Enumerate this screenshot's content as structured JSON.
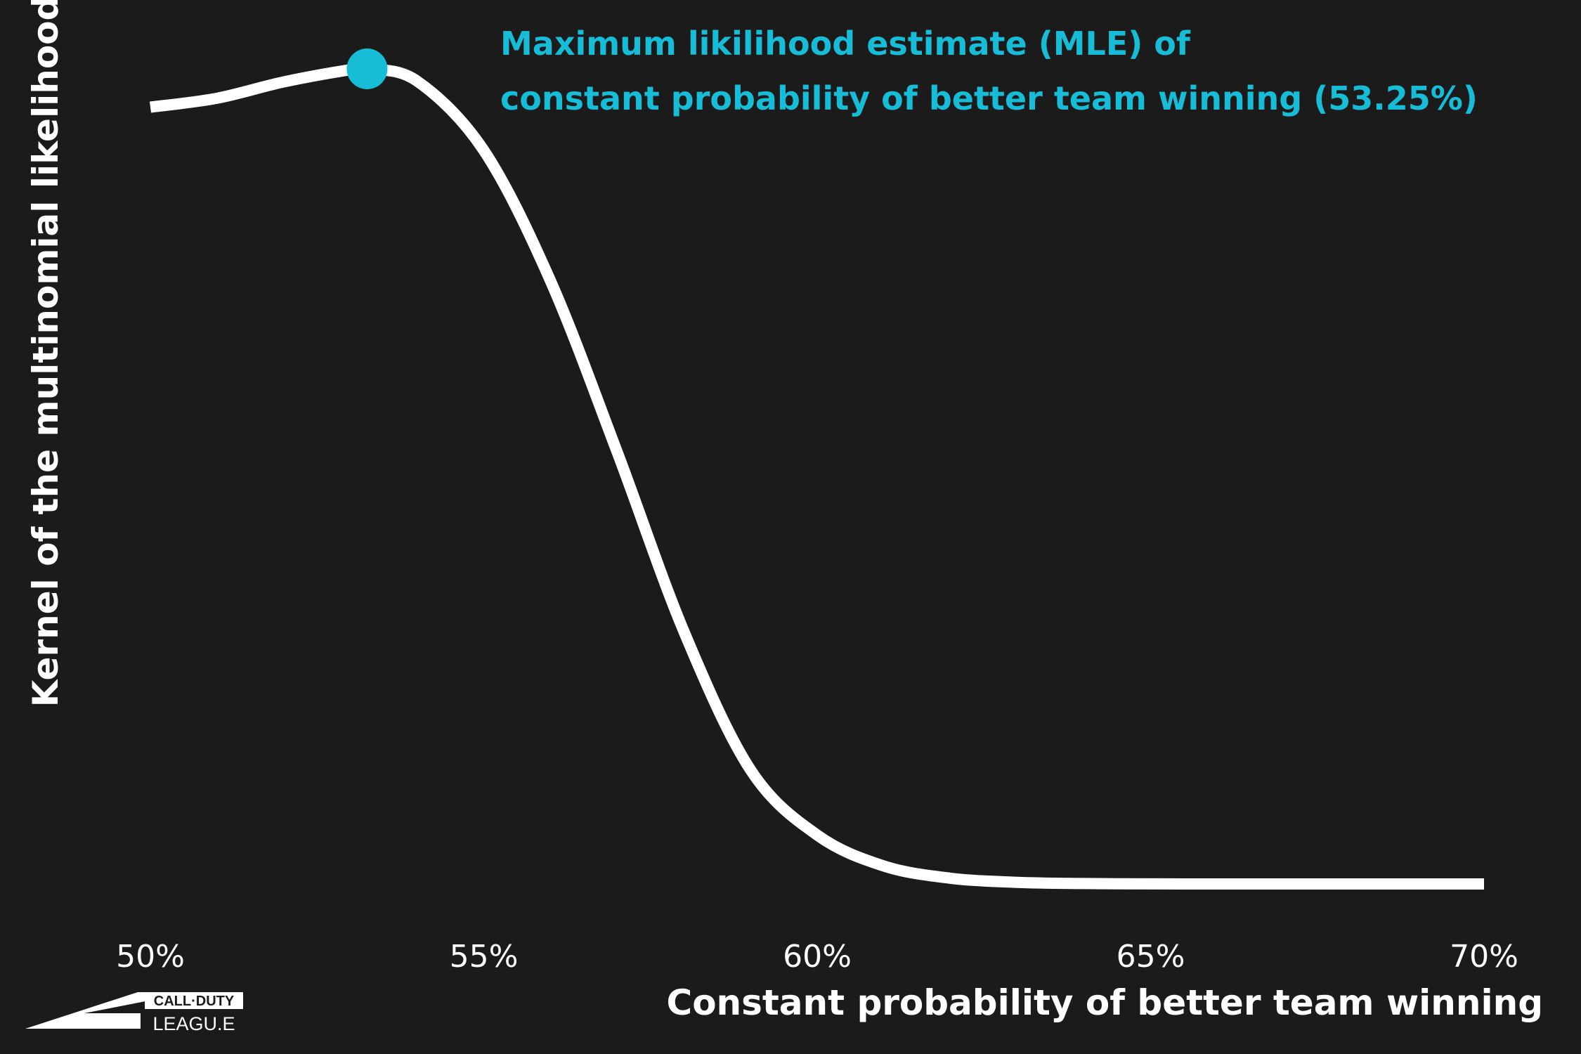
{
  "chart_data": {
    "type": "line",
    "xlabel": "Constant probability of better team winning",
    "ylabel": "Kernel of the multinomial likelihood",
    "x_ticks": [
      "50%",
      "55%",
      "60%",
      "65%",
      "70%"
    ],
    "xlim": [
      50,
      70
    ],
    "ylim": [
      0,
      1
    ],
    "grid": false,
    "series": [
      {
        "x": [
          50,
          51,
          52,
          53,
          53.25,
          54,
          55,
          56,
          57,
          58,
          59,
          60,
          61,
          62,
          63,
          64,
          65,
          66,
          67,
          68,
          69,
          70
        ],
        "y": [
          0.953,
          0.964,
          0.984,
          0.999,
          1.0,
          0.985,
          0.9,
          0.74,
          0.53,
          0.31,
          0.14,
          0.06,
          0.022,
          0.007,
          0.002,
          0.0005,
          0.0001,
          0.0,
          0.0,
          0.0,
          0.0,
          0.0
        ]
      }
    ],
    "annotation": {
      "line1": "Maximum likilihood estimate (MLE) of",
      "line2": "constant probability of better team winning (53.25%)",
      "point_x": 53.25,
      "point_y": 1.0,
      "color": "#17bcd6"
    },
    "line_color": "#ffffff",
    "background": "#1b1b1b"
  },
  "logo": {
    "top": "CALL·DUTY",
    "bottom": "LEAGU.E"
  }
}
